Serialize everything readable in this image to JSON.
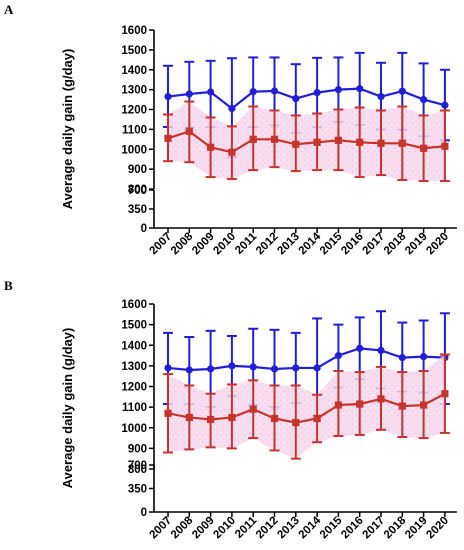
{
  "chart_data": [
    {
      "panel": "A",
      "type": "line",
      "ylabel": "Average daily gain (g/day)",
      "y_axis_break": {
        "lower_ticks": [
          0,
          350,
          700
        ],
        "upper_ticks": [
          800,
          900,
          1000,
          1100,
          1200,
          1300,
          1400,
          1500,
          1600
        ]
      },
      "categories": [
        "2007",
        "2008",
        "2009",
        "2010",
        "2011",
        "2012",
        "2013",
        "2014",
        "2015",
        "2016",
        "2017",
        "2018",
        "2019",
        "2020"
      ],
      "series": [
        {
          "color": "#1f1fd6",
          "marker": "circle",
          "values": [
            1265,
            1278,
            1288,
            1205,
            1290,
            1293,
            1255,
            1285,
            1300,
            1305,
            1265,
            1292,
            1250,
            1222
          ],
          "err_upper": [
            1420,
            1440,
            1445,
            1458,
            1462,
            1462,
            1428,
            1460,
            1462,
            1485,
            1435,
            1485,
            1432,
            1400
          ],
          "err_lower": [
            1112,
            1110,
            1112,
            960,
            1112,
            1120,
            1082,
            1110,
            1138,
            1122,
            1100,
            1098,
            1065,
            1045
          ]
        },
        {
          "color": "#c8342a",
          "marker": "square",
          "values": [
            1055,
            1090,
            1010,
            985,
            1050,
            1050,
            1025,
            1035,
            1045,
            1035,
            1030,
            1030,
            1005,
            1015
          ],
          "err_upper": [
            1175,
            1240,
            1160,
            1115,
            1215,
            1195,
            1170,
            1180,
            1200,
            1210,
            1195,
            1215,
            1170,
            1195
          ],
          "err_lower": [
            940,
            935,
            860,
            850,
            895,
            910,
            890,
            895,
            895,
            860,
            870,
            845,
            840,
            840
          ]
        }
      ]
    },
    {
      "panel": "B",
      "type": "line",
      "ylabel": "Average daily gain (g/day)",
      "y_axis_break": {
        "lower_ticks": [
          0,
          350,
          700
        ],
        "upper_ticks": [
          800,
          900,
          1000,
          1100,
          1200,
          1300,
          1400,
          1500,
          1600
        ]
      },
      "categories": [
        "2007",
        "2008",
        "2009",
        "2010",
        "2011",
        "2012",
        "2013",
        "2014",
        "2015",
        "2016",
        "2017",
        "2018",
        "2019",
        "2020"
      ],
      "series": [
        {
          "color": "#1f1fd6",
          "marker": "circle",
          "values": [
            1290,
            1280,
            1285,
            1300,
            1295,
            1285,
            1290,
            1290,
            1350,
            1385,
            1375,
            1340,
            1345,
            1340
          ],
          "err_upper": [
            1460,
            1440,
            1470,
            1445,
            1480,
            1475,
            1460,
            1530,
            1500,
            1535,
            1565,
            1510,
            1520,
            1555
          ],
          "err_lower": [
            1115,
            1115,
            1100,
            1155,
            1110,
            1100,
            1120,
            1060,
            1195,
            1235,
            1190,
            1175,
            1170,
            1115
          ]
        },
        {
          "color": "#c8342a",
          "marker": "square",
          "values": [
            1070,
            1050,
            1040,
            1050,
            1090,
            1045,
            1025,
            1045,
            1110,
            1115,
            1140,
            1105,
            1110,
            1165
          ],
          "err_upper": [
            1260,
            1205,
            1165,
            1210,
            1230,
            1205,
            1205,
            1160,
            1275,
            1270,
            1295,
            1270,
            1275,
            1355
          ],
          "err_lower": [
            880,
            895,
            905,
            900,
            950,
            890,
            850,
            930,
            960,
            965,
            990,
            955,
            950,
            975
          ]
        }
      ]
    }
  ]
}
